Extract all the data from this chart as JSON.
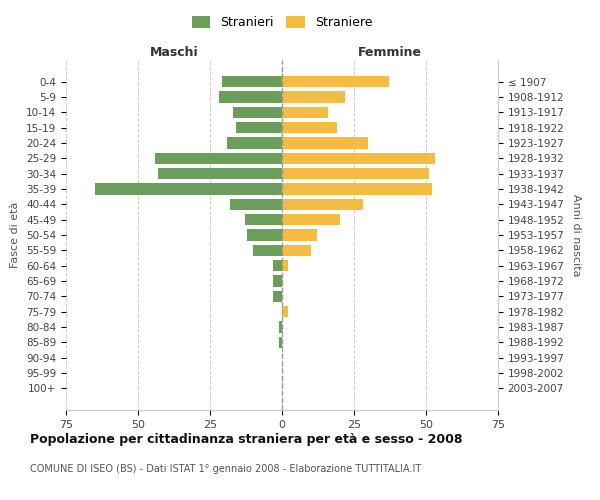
{
  "age_groups": [
    "0-4",
    "5-9",
    "10-14",
    "15-19",
    "20-24",
    "25-29",
    "30-34",
    "35-39",
    "40-44",
    "45-49",
    "50-54",
    "55-59",
    "60-64",
    "65-69",
    "70-74",
    "75-79",
    "80-84",
    "85-89",
    "90-94",
    "95-99",
    "100+"
  ],
  "birth_years": [
    "2003-2007",
    "1998-2002",
    "1993-1997",
    "1988-1992",
    "1983-1987",
    "1978-1982",
    "1973-1977",
    "1968-1972",
    "1963-1967",
    "1958-1962",
    "1953-1957",
    "1948-1952",
    "1943-1947",
    "1938-1942",
    "1933-1937",
    "1928-1932",
    "1923-1927",
    "1918-1922",
    "1913-1917",
    "1908-1912",
    "≤ 1907"
  ],
  "maschi": [
    21,
    22,
    17,
    16,
    19,
    44,
    43,
    65,
    18,
    13,
    12,
    10,
    3,
    3,
    3,
    0,
    1,
    1,
    0,
    0,
    0
  ],
  "femmine": [
    37,
    22,
    16,
    19,
    30,
    53,
    51,
    52,
    28,
    20,
    12,
    10,
    2,
    0,
    0,
    2,
    0,
    0,
    0,
    0,
    0
  ],
  "maschi_color": "#6a9e5a",
  "femmine_color": "#f5bc42",
  "title": "Popolazione per cittadinanza straniera per età e sesso - 2008",
  "subtitle": "COMUNE DI ISEO (BS) - Dati ISTAT 1° gennaio 2008 - Elaborazione TUTTITALIA.IT",
  "xlabel_left": "Maschi",
  "xlabel_right": "Femmine",
  "ylabel_left": "Fasce di età",
  "ylabel_right": "Anni di nascita",
  "legend_stranieri": "Stranieri",
  "legend_straniere": "Straniere",
  "xlim": 75,
  "background_color": "#ffffff",
  "grid_color": "#cccccc"
}
